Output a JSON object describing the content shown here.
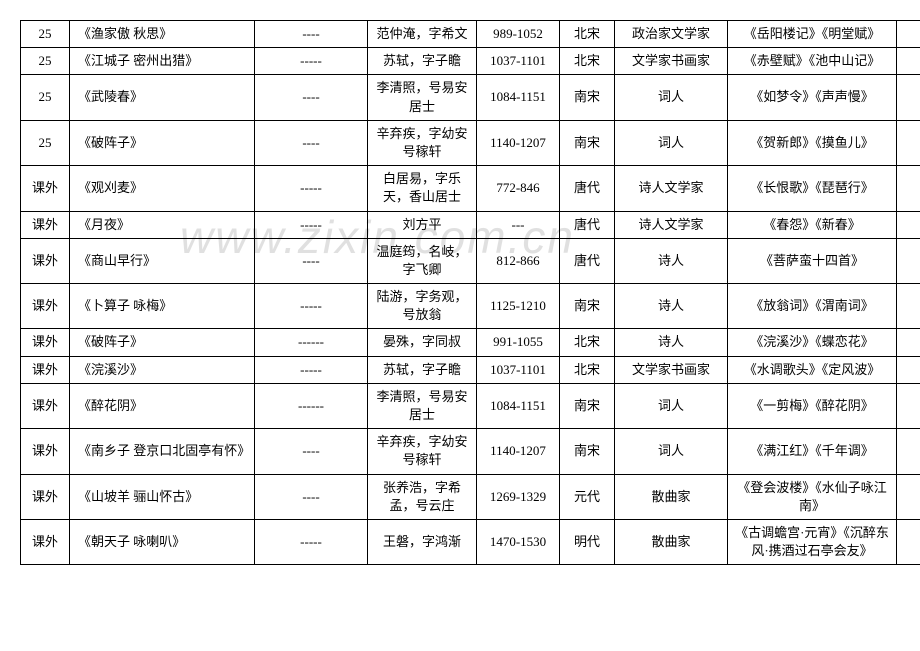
{
  "watermark": "www.zixin.com.cn",
  "table": {
    "rows": [
      {
        "c0": "25",
        "c1": "《渔家傲 秋思》",
        "c2": "----",
        "c3": "范仲淹，字希文",
        "c4": "989-1052",
        "c5": "北宋",
        "c6": "政治家文学家",
        "c7": "《岳阳楼记》《明堂赋》",
        "c8": ""
      },
      {
        "c0": "25",
        "c1": "《江城子 密州出猎》",
        "c2": "-----",
        "c3": "苏轼，字子瞻",
        "c4": "1037-1101",
        "c5": "北宋",
        "c6": "文学家书画家",
        "c7": "《赤壁赋》《池中山记》",
        "c8": ""
      },
      {
        "c0": "25",
        "c1": "《武陵春》",
        "c2": "----",
        "c3": "李清照，号易安居士",
        "c4": "1084-1151",
        "c5": "南宋",
        "c6": "词人",
        "c7": "《如梦令》《声声慢》",
        "c8": ""
      },
      {
        "c0": "25",
        "c1": "《破阵子》",
        "c2": "----",
        "c3": "辛弃疾，字幼安号稼轩",
        "c4": "1140-1207",
        "c5": "南宋",
        "c6": "词人",
        "c7": "《贺新郎》《摸鱼儿》",
        "c8": ""
      },
      {
        "c0": "课外",
        "c1": "《观刈麦》",
        "c2": "-----",
        "c3": "白居易，字乐天，香山居士",
        "c4": "772-846",
        "c5": "唐代",
        "c6": "诗人文学家",
        "c7": "《长恨歌》《琵琶行》",
        "c8": ""
      },
      {
        "c0": "课外",
        "c1": "《月夜》",
        "c2": "-----",
        "c3": "刘方平",
        "c4": "---",
        "c5": "唐代",
        "c6": "诗人文学家",
        "c7": "《春怨》《新春》",
        "c8": ""
      },
      {
        "c0": "课外",
        "c1": "《商山早行》",
        "c2": "----",
        "c3": "温庭筠，名岐，字飞卿",
        "c4": "812-866",
        "c5": "唐代",
        "c6": "诗人",
        "c7": "《菩萨蛮十四首》",
        "c8": ""
      },
      {
        "c0": "课外",
        "c1": "《卜算子 咏梅》",
        "c2": "-----",
        "c3": "陆游，字务观，号放翁",
        "c4": "1125-1210",
        "c5": "南宋",
        "c6": "诗人",
        "c7": "《放翁词》《渭南词》",
        "c8": ""
      },
      {
        "c0": "课外",
        "c1": "《破阵子》",
        "c2": "------",
        "c3": "晏殊，字同叔",
        "c4": "991-1055",
        "c5": "北宋",
        "c6": "诗人",
        "c7": "《浣溪沙》《蝶恋花》",
        "c8": ""
      },
      {
        "c0": "课外",
        "c1": "《浣溪沙》",
        "c2": "-----",
        "c3": "苏轼，字子瞻",
        "c4": "1037-1101",
        "c5": "北宋",
        "c6": "文学家书画家",
        "c7": "《水调歌头》《定风波》",
        "c8": ""
      },
      {
        "c0": "课外",
        "c1": "《醉花阴》",
        "c2": "------",
        "c3": "李清照，号易安居士",
        "c4": "1084-1151",
        "c5": "南宋",
        "c6": "词人",
        "c7": "《一剪梅》《醉花阴》",
        "c8": ""
      },
      {
        "c0": "课外",
        "c1": "《南乡子 登京口北固亭有怀》",
        "c2": "----",
        "c3": "辛弃疾，字幼安号稼轩",
        "c4": "1140-1207",
        "c5": "南宋",
        "c6": "词人",
        "c7": "《满江红》《千年调》",
        "c8": ""
      },
      {
        "c0": "课外",
        "c1": "《山坡羊 骊山怀古》",
        "c2": "----",
        "c3": "张养浩，字希孟，号云庄",
        "c4": "1269-1329",
        "c5": "元代",
        "c6": "散曲家",
        "c7": "《登会波楼》《水仙子咏江南》",
        "c8": ""
      },
      {
        "c0": "课外",
        "c1": "《朝天子 咏喇叭》",
        "c2": "-----",
        "c3": "王磐，字鸿渐",
        "c4": "1470-1530",
        "c5": "明代",
        "c6": "散曲家",
        "c7": "《古调蟾宫·元宵》《沉醉东风·携酒过石亭会友》",
        "c8": ""
      }
    ]
  }
}
